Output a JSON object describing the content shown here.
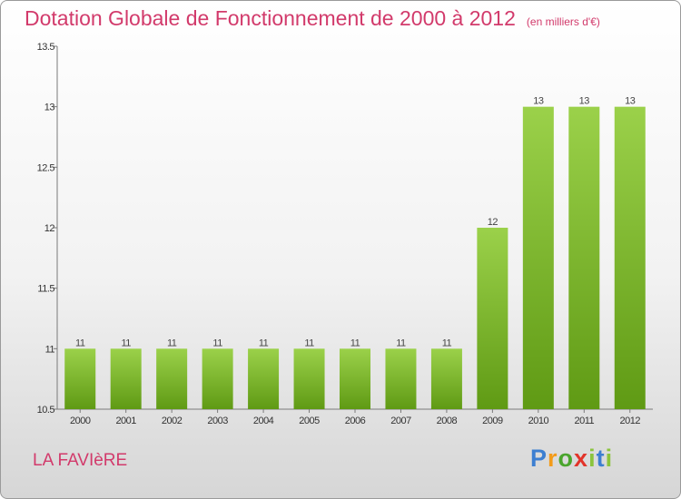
{
  "header": {
    "title": "Dotation Globale de Fonctionnement de 2000 à 2012",
    "subtitle": "(en milliers d'€)"
  },
  "footer": {
    "commune": "LA FAVIèRE",
    "logo": [
      "P",
      "r",
      "o",
      "x",
      "i",
      "t",
      "i"
    ]
  },
  "colors": {
    "bar_light": "#9bd14a",
    "bar_dark": "#5f9a14",
    "title": "#d23a6b"
  },
  "chart_data": {
    "type": "bar",
    "categories": [
      "2000",
      "2001",
      "2002",
      "2003",
      "2004",
      "2005",
      "2006",
      "2007",
      "2008",
      "2009",
      "2010",
      "2011",
      "2012"
    ],
    "values": [
      11,
      11,
      11,
      11,
      11,
      11,
      11,
      11,
      11,
      12,
      13,
      13,
      13
    ],
    "value_labels": [
      "11",
      "11",
      "11",
      "11",
      "11",
      "11",
      "11",
      "11",
      "11",
      "12",
      "13",
      "13",
      "13"
    ],
    "ylim": [
      10.5,
      13.5
    ],
    "yticks": [
      10.5,
      11,
      11.5,
      12,
      12.5,
      13,
      13.5
    ],
    "ytick_labels": [
      "10.5",
      "11",
      "11.5",
      "12",
      "12.5",
      "13",
      "13.5"
    ],
    "grid": false
  }
}
